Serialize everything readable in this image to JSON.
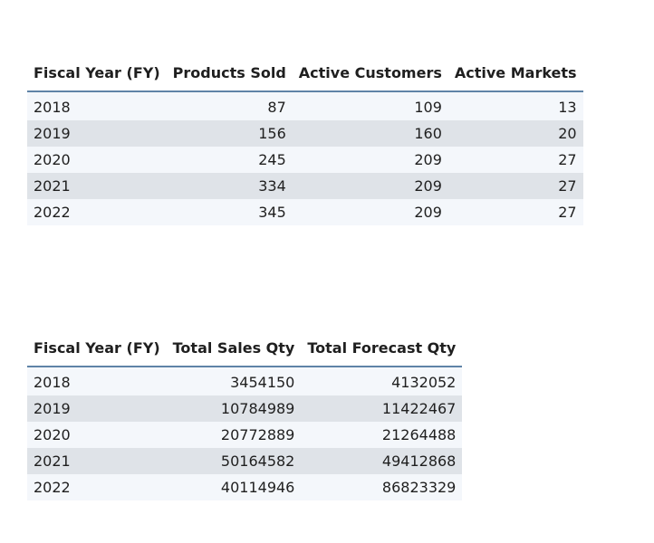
{
  "table1": {
    "headers": [
      "Fiscal Year (FY)",
      "Products Sold",
      "Active Customers",
      "Active Markets"
    ],
    "rows": [
      [
        "2018",
        "87",
        "109",
        "13"
      ],
      [
        "2019",
        "156",
        "160",
        "20"
      ],
      [
        "2020",
        "245",
        "209",
        "27"
      ],
      [
        "2021",
        "334",
        "209",
        "27"
      ],
      [
        "2022",
        "345",
        "209",
        "27"
      ]
    ]
  },
  "table2": {
    "headers": [
      "Fiscal Year (FY)",
      "Total Sales Qty",
      "Total Forecast Qty"
    ],
    "rows": [
      [
        "2018",
        "3454150",
        "4132052"
      ],
      [
        "2019",
        "10784989",
        "11422467"
      ],
      [
        "2020",
        "20772889",
        "21264488"
      ],
      [
        "2021",
        "50164582",
        "49412868"
      ],
      [
        "2022",
        "40114946",
        "86823329"
      ]
    ]
  },
  "colors": {
    "header_underline": "#5f83a7",
    "row_light": "#f4f7fb",
    "row_dark": "#dfe3e8"
  }
}
